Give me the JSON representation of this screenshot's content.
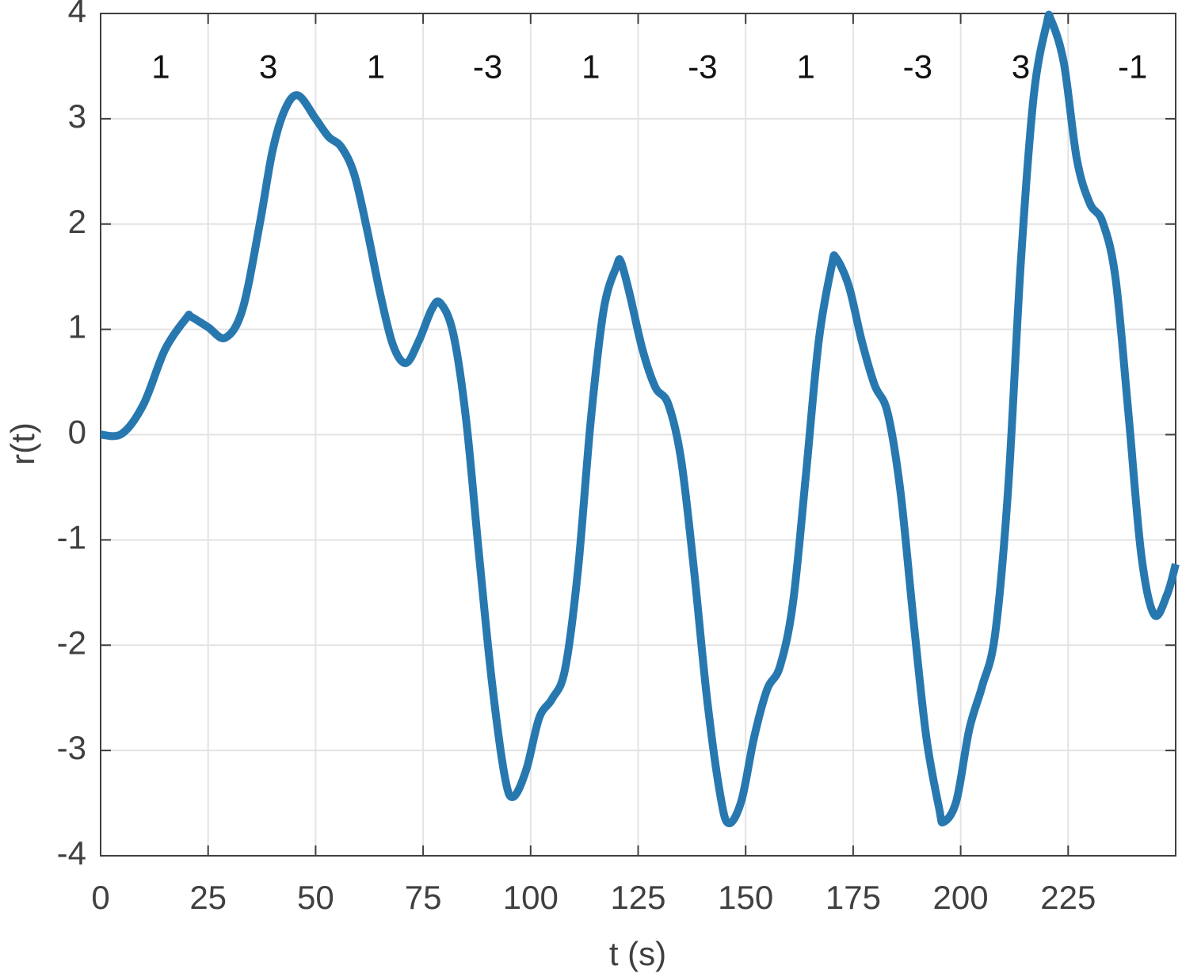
{
  "chart_data": {
    "type": "line",
    "x_label": "t (s)",
    "y_label": "r(t)",
    "x": [
      0,
      5,
      10,
      15,
      20,
      21,
      25,
      29,
      33,
      37,
      40,
      43,
      46,
      50,
      53,
      56,
      59,
      62,
      65,
      68,
      71,
      74,
      77,
      79,
      82,
      85,
      88,
      91,
      94,
      96,
      99,
      102,
      105,
      108,
      111,
      114,
      117,
      120,
      121,
      123,
      126,
      129,
      132,
      135,
      138,
      141,
      144,
      146,
      149,
      152,
      155,
      158,
      161,
      164,
      167,
      170,
      171,
      174,
      177,
      180,
      183,
      186,
      189,
      192,
      195,
      196,
      199,
      202,
      205,
      208,
      211,
      214,
      217,
      220,
      221,
      224,
      227,
      230,
      233,
      236,
      239,
      242,
      245,
      248,
      250
    ],
    "series": [
      {
        "name": "r(t)",
        "color": "#2878b0",
        "values": [
          0,
          0.01,
          0.29,
          0.81,
          1.11,
          1.12,
          1.02,
          0.92,
          1.19,
          2.0,
          2.7,
          3.1,
          3.22,
          3.0,
          2.83,
          2.73,
          2.47,
          1.94,
          1.34,
          0.85,
          0.68,
          0.89,
          1.19,
          1.25,
          0.96,
          0.14,
          -1.14,
          -2.35,
          -3.25,
          -3.44,
          -3.18,
          -2.69,
          -2.51,
          -2.23,
          -1.29,
          0.14,
          1.19,
          1.6,
          1.64,
          1.34,
          0.81,
          0.45,
          0.29,
          -0.24,
          -1.29,
          -2.5,
          -3.4,
          -3.69,
          -3.48,
          -2.87,
          -2.42,
          -2.2,
          -1.6,
          -0.39,
          0.89,
          1.6,
          1.68,
          1.41,
          0.89,
          0.47,
          0.21,
          -0.54,
          -1.75,
          -2.87,
          -3.55,
          -3.68,
          -3.48,
          -2.8,
          -2.39,
          -1.9,
          -0.54,
          1.64,
          3.22,
          3.9,
          3.94,
          3.53,
          2.62,
          2.2,
          2.02,
          1.49,
          0.21,
          -1.14,
          -1.71,
          -1.52,
          -1.23
        ]
      }
    ],
    "annotations": [
      {
        "text": "1",
        "x": 14,
        "y": 3.47
      },
      {
        "text": "3",
        "x": 39,
        "y": 3.47
      },
      {
        "text": "1",
        "x": 64,
        "y": 3.47
      },
      {
        "text": "-3",
        "x": 90,
        "y": 3.47
      },
      {
        "text": "1",
        "x": 114,
        "y": 3.47
      },
      {
        "text": "-3",
        "x": 140,
        "y": 3.47
      },
      {
        "text": "1",
        "x": 164,
        "y": 3.47
      },
      {
        "text": "-3",
        "x": 190,
        "y": 3.47
      },
      {
        "text": "3",
        "x": 214,
        "y": 3.47
      },
      {
        "text": "-1",
        "x": 240,
        "y": 3.47
      }
    ],
    "xlim": [
      0,
      250
    ],
    "xticks": [
      0,
      25,
      50,
      75,
      100,
      125,
      150,
      175,
      200,
      225
    ],
    "ylim": [
      -4,
      4
    ],
    "yticks": [
      -4,
      -3,
      -2,
      -1,
      0,
      1,
      2,
      3,
      4
    ],
    "grid": true
  }
}
